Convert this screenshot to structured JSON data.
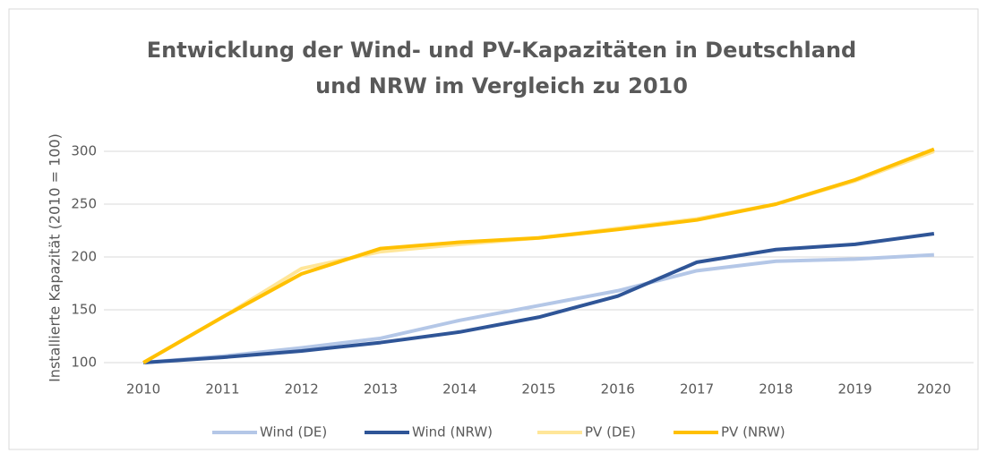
{
  "chart_data": {
    "type": "line",
    "title": [
      "Entwicklung der Wind- und PV-Kapazitäten in Deutschland",
      "und NRW im Vergleich zu 2010"
    ],
    "y_label": "Installierte Kapazität (2010 = 100)",
    "categories": [
      "2010",
      "2011",
      "2012",
      "2013",
      "2014",
      "2015",
      "2016",
      "2017",
      "2018",
      "2019",
      "2020"
    ],
    "series": [
      {
        "name": "Wind (DE)",
        "color": "#b4c7e7",
        "values": [
          100,
          106,
          114,
          123,
          140,
          154,
          168,
          187,
          196,
          198,
          202
        ]
      },
      {
        "name": "Wind (NRW)",
        "color": "#2f5597",
        "values": [
          100,
          105,
          111,
          119,
          129,
          143,
          163,
          195,
          207,
          212,
          222
        ]
      },
      {
        "name": "PV (DE)",
        "color": "#ffe699",
        "values": [
          100,
          143,
          189,
          205,
          212,
          218,
          227,
          236,
          250,
          272,
          300
        ]
      },
      {
        "name": "PV (NRW)",
        "color": "#ffc000",
        "values": [
          100,
          143,
          184,
          208,
          214,
          218,
          226,
          235,
          250,
          273,
          302
        ]
      }
    ],
    "ylim": [
      100,
      300
    ],
    "yticks": [
      100,
      150,
      200,
      250,
      300
    ],
    "grid": true,
    "legend": "bottom"
  }
}
